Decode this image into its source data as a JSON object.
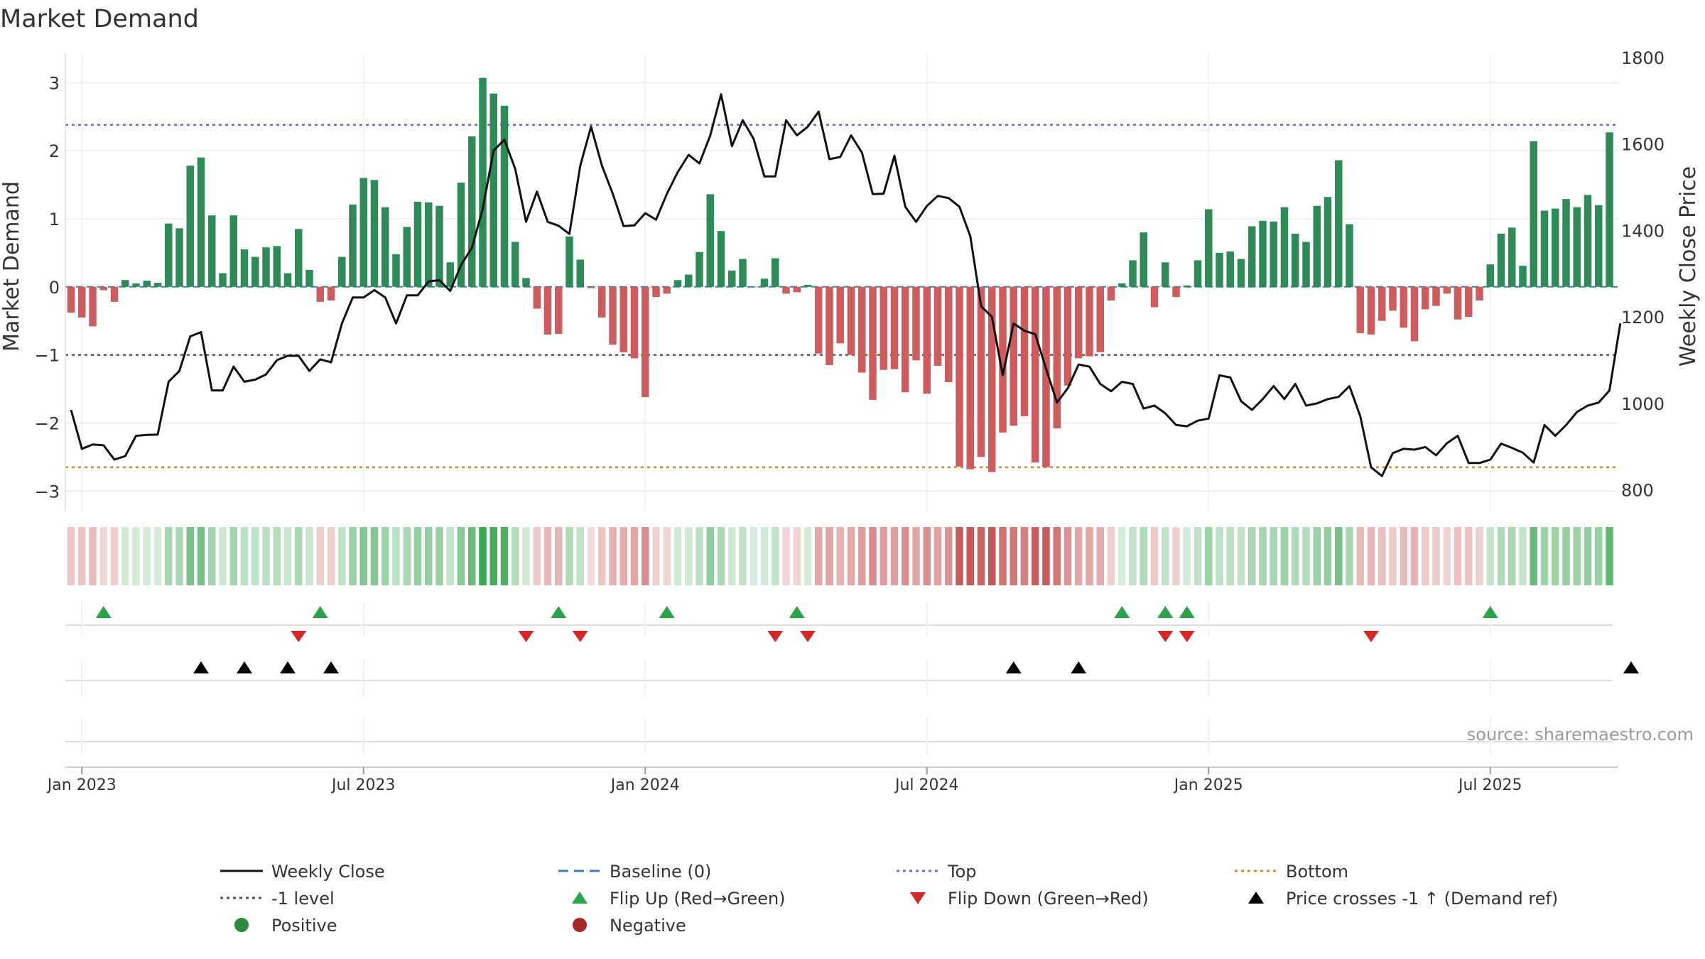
{
  "chart_data": {
    "type": "bar",
    "title": "Market Demand",
    "ylabel_left": "Market Demand",
    "ylabel_right": "Weekly Close Price",
    "source": "source: sharemaestro.com",
    "x_tick_labels": [
      "Jan 2023",
      "Jul 2023",
      "Jan 2024",
      "Jul 2024",
      "Jan 2025",
      "Jul 2025"
    ],
    "x_tick_weeks": [
      1,
      27,
      53,
      79,
      105,
      131
    ],
    "ylim_left": [
      -3.3,
      3.4
    ],
    "yticks_left": [
      3,
      2,
      1,
      0,
      -1,
      -2,
      -3
    ],
    "yticks_left_labels": [
      "3",
      "2",
      "1",
      "0",
      "−1",
      "−2",
      "−3"
    ],
    "ylim_right": [
      750,
      1805
    ],
    "yticks_right": [
      1800,
      1600,
      1400,
      1200,
      1000,
      800
    ],
    "yticks_right_labels": [
      "1800",
      "1600",
      "1400",
      "1200",
      "1000",
      "800"
    ],
    "reference_lines": {
      "top": 2.38,
      "bottom": -2.65,
      "minus_one": -1,
      "baseline": 0
    },
    "demand": [
      -0.38,
      -0.45,
      -0.58,
      -0.05,
      -0.22,
      0.1,
      0.05,
      0.09,
      0.06,
      0.93,
      0.86,
      1.78,
      1.9,
      1.05,
      0.2,
      1.05,
      0.55,
      0.44,
      0.58,
      0.6,
      0.2,
      0.85,
      0.25,
      -0.22,
      -0.2,
      0.44,
      1.21,
      1.6,
      1.57,
      1.17,
      0.48,
      0.88,
      1.25,
      1.24,
      1.19,
      0.36,
      1.53,
      2.21,
      3.07,
      2.84,
      2.66,
      0.66,
      0.13,
      -0.32,
      -0.7,
      -0.69,
      0.74,
      0.4,
      -0.02,
      -0.45,
      -0.85,
      -0.96,
      -1.05,
      -1.62,
      -0.15,
      -0.1,
      0.1,
      0.18,
      0.51,
      1.36,
      0.82,
      0.24,
      0.41,
      0.0,
      0.12,
      0.42,
      -0.1,
      -0.08,
      0.03,
      -0.98,
      -1.15,
      -0.83,
      -1.0,
      -1.26,
      -1.66,
      -1.22,
      -1.21,
      -1.55,
      -1.08,
      -1.57,
      -1.16,
      -1.4,
      -2.64,
      -2.68,
      -2.5,
      -2.72,
      -2.14,
      -2.04,
      -1.9,
      -2.58,
      -2.65,
      -2.08,
      -1.45,
      -1.05,
      -1.02,
      -0.96,
      -0.2,
      0.05,
      0.39,
      0.8,
      -0.3,
      0.36,
      -0.15,
      0.02,
      0.39,
      1.14,
      0.5,
      0.52,
      0.41,
      0.89,
      0.97,
      0.96,
      1.17,
      0.78,
      0.66,
      1.19,
      1.32,
      1.86,
      0.92,
      -0.68,
      -0.7,
      -0.5,
      -0.35,
      -0.6,
      -0.8,
      -0.33,
      -0.28,
      -0.1,
      -0.48,
      -0.44,
      -0.2,
      0.33,
      0.78,
      0.87,
      0.31,
      2.14,
      1.12,
      1.15,
      1.29,
      1.17,
      1.35,
      1.2,
      2.27
    ],
    "close": [
      985,
      895,
      905,
      903,
      870,
      878,
      925,
      927,
      928,
      1050,
      1075,
      1155,
      1165,
      1030,
      1030,
      1085,
      1050,
      1055,
      1067,
      1100,
      1110,
      1110,
      1075,
      1102,
      1095,
      1185,
      1245,
      1245,
      1262,
      1245,
      1185,
      1250,
      1250,
      1282,
      1285,
      1260,
      1320,
      1360,
      1450,
      1585,
      1610,
      1542,
      1420,
      1490,
      1420,
      1411,
      1392,
      1550,
      1640,
      1550,
      1485,
      1410,
      1412,
      1440,
      1425,
      1485,
      1535,
      1575,
      1555,
      1620,
      1715,
      1595,
      1655,
      1612,
      1525,
      1525,
      1655,
      1620,
      1640,
      1675,
      1565,
      1570,
      1620,
      1580,
      1484,
      1485,
      1573,
      1455,
      1420,
      1457,
      1480,
      1475,
      1455,
      1387,
      1225,
      1200,
      1065,
      1185,
      1168,
      1160,
      1080,
      1002,
      1035,
      1090,
      1085,
      1045,
      1028,
      1050,
      1045,
      988,
      995,
      977,
      950,
      947,
      960,
      965,
      1065,
      1060,
      1005,
      985,
      1010,
      1040,
      1010,
      1045,
      995,
      1000,
      1010,
      1015,
      1040,
      970,
      852,
      832,
      885,
      895,
      893,
      899,
      880,
      908,
      925,
      862,
      862,
      870,
      907,
      897,
      886,
      863,
      950,
      925,
      950,
      980,
      995,
      1002,
      1030,
      1185
    ],
    "flip_up_weeks": [
      3,
      23,
      45,
      55,
      67,
      97,
      101,
      103,
      131
    ],
    "flip_down_weeks": [
      21,
      42,
      47,
      65,
      68,
      101,
      103,
      120
    ],
    "price_cross_weeks": [
      12,
      16,
      20,
      24,
      87,
      93,
      144
    ],
    "legend": [
      {
        "label": "Weekly Close",
        "kind": "line",
        "color": "#111111"
      },
      {
        "label": "Baseline (0)",
        "kind": "dash",
        "color": "#3d7fb0"
      },
      {
        "label": "Top",
        "kind": "dots",
        "color": "#6b6bd8"
      },
      {
        "label": "Bottom",
        "kind": "dots",
        "color": "#d08a2a"
      },
      {
        "label": "-1 level",
        "kind": "dots",
        "color": "#555555"
      },
      {
        "label": "Flip Up (Red→Green)",
        "kind": "tri-up",
        "color": "#2ca24a"
      },
      {
        "label": "Flip Down (Green→Red)",
        "kind": "tri-down",
        "color": "#d62728"
      },
      {
        "label": "Price crosses -1 ↑ (Demand ref)",
        "kind": "tri-up",
        "color": "#000000"
      },
      {
        "label": "Positive",
        "kind": "dot",
        "color": "#2a8a3e"
      },
      {
        "label": "Negative",
        "kind": "dot",
        "color": "#a52a2a"
      }
    ],
    "colors": {
      "positive_bar": "#2e8b57",
      "negative_bar": "#cd5c5c",
      "close_line": "#111111",
      "top_line": "#6b6bd8",
      "bottom_line": "#d08a2a",
      "minus_one_line": "#555555",
      "baseline_line": "#3d7fb0",
      "flip_up": "#2ca24a",
      "flip_down": "#d62728",
      "cross": "#000000"
    }
  }
}
